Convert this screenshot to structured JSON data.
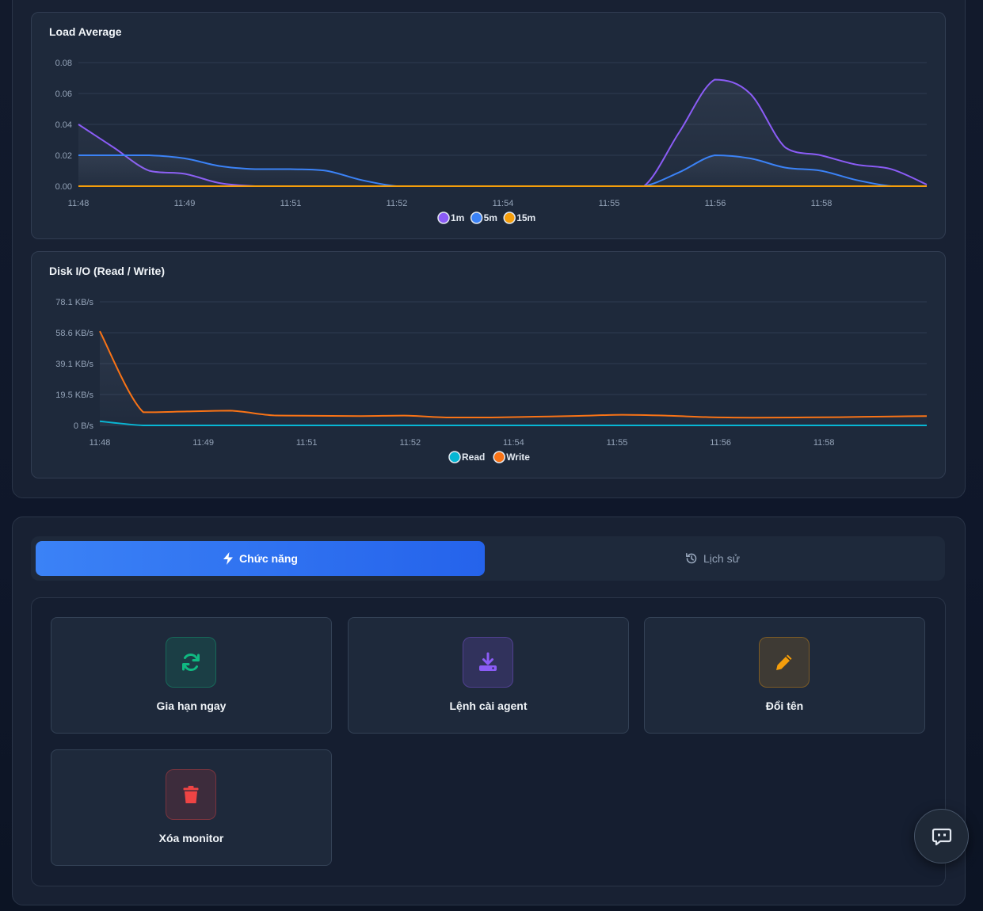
{
  "load_chart": {
    "title": "Load Average",
    "y_ticks": [
      "0.08",
      "0.06",
      "0.04",
      "0.02",
      "0.00"
    ],
    "x_ticks": [
      "11:48",
      "11:49",
      "11:51",
      "11:52",
      "11:54",
      "11:55",
      "11:56",
      "11:58"
    ]
  },
  "disk_chart": {
    "title": "Disk I/O (Read / Write)",
    "y_ticks": [
      "78.1 KB/s",
      "58.6 KB/s",
      "39.1 KB/s",
      "19.5 KB/s",
      "0 B/s"
    ],
    "x_ticks": [
      "11:48",
      "11:49",
      "11:51",
      "11:52",
      "11:54",
      "11:55",
      "11:56",
      "11:58"
    ]
  },
  "chart_data": [
    {
      "type": "area",
      "title": "Load Average",
      "ylim": [
        0,
        0.08
      ],
      "x": [
        "11:48",
        "",
        "",
        "",
        "",
        "",
        "",
        "",
        "",
        "",
        "",
        "",
        "",
        "",
        "",
        "",
        "",
        "",
        "",
        "",
        "",
        "",
        "",
        "",
        ""
      ],
      "series": [
        {
          "name": "1m",
          "color": "#8b5cf6",
          "values": [
            0.04,
            0.025,
            0.01,
            0.008,
            0.002,
            0,
            0,
            0,
            0,
            0,
            0,
            0,
            0,
            0,
            0,
            0,
            0,
            0.035,
            0.069,
            0.06,
            0.025,
            0.02,
            0.014,
            0.011,
            0.001
          ]
        },
        {
          "name": "5m",
          "color": "#3b82f6",
          "values": [
            0.02,
            0.02,
            0.02,
            0.018,
            0.013,
            0.011,
            0.011,
            0.01,
            0.004,
            0,
            0,
            0,
            0,
            0,
            0,
            0,
            0,
            0.009,
            0.02,
            0.018,
            0.012,
            0.01,
            0.004,
            0,
            0
          ]
        },
        {
          "name": "15m",
          "color": "#f59e0b",
          "values": [
            0,
            0,
            0,
            0,
            0,
            0,
            0,
            0,
            0,
            0,
            0,
            0,
            0,
            0,
            0,
            0,
            0,
            0,
            0,
            0,
            0,
            0,
            0,
            0,
            0
          ]
        }
      ],
      "legend": "bottom"
    },
    {
      "type": "area",
      "title": "Disk I/O (Read / Write)",
      "ylim": [
        0,
        78.1
      ],
      "yunit": "KB/s",
      "series": [
        {
          "name": "Read",
          "color": "#06b6d4",
          "values": [
            2.6,
            0,
            0,
            0,
            0,
            0,
            0,
            0,
            0,
            0,
            0,
            0,
            0,
            0,
            0,
            0,
            0,
            0,
            0,
            0
          ]
        },
        {
          "name": "Write",
          "color": "#f97316",
          "values": [
            59.5,
            8.3,
            8.8,
            9.3,
            6.3,
            6.1,
            5.9,
            6.2,
            5.0,
            5.0,
            5.5,
            6.0,
            6.7,
            6.2,
            5.2,
            4.9,
            5.0,
            5.2,
            5.6,
            5.9
          ]
        }
      ],
      "legend": "bottom"
    }
  ],
  "tabs": {
    "functions_label": "Chức năng",
    "history_label": "Lịch sử"
  },
  "actions": [
    {
      "label": "Gia hạn ngay",
      "icon": "refresh-icon",
      "color": "#10b981"
    },
    {
      "label": "Lệnh cài agent",
      "icon": "download-icon",
      "color": "#8b5cf6"
    },
    {
      "label": "Đổi tên",
      "icon": "pencil-icon",
      "color": "#f59e0b"
    },
    {
      "label": "Xóa monitor",
      "icon": "trash-icon",
      "color": "#ef4444"
    }
  ]
}
